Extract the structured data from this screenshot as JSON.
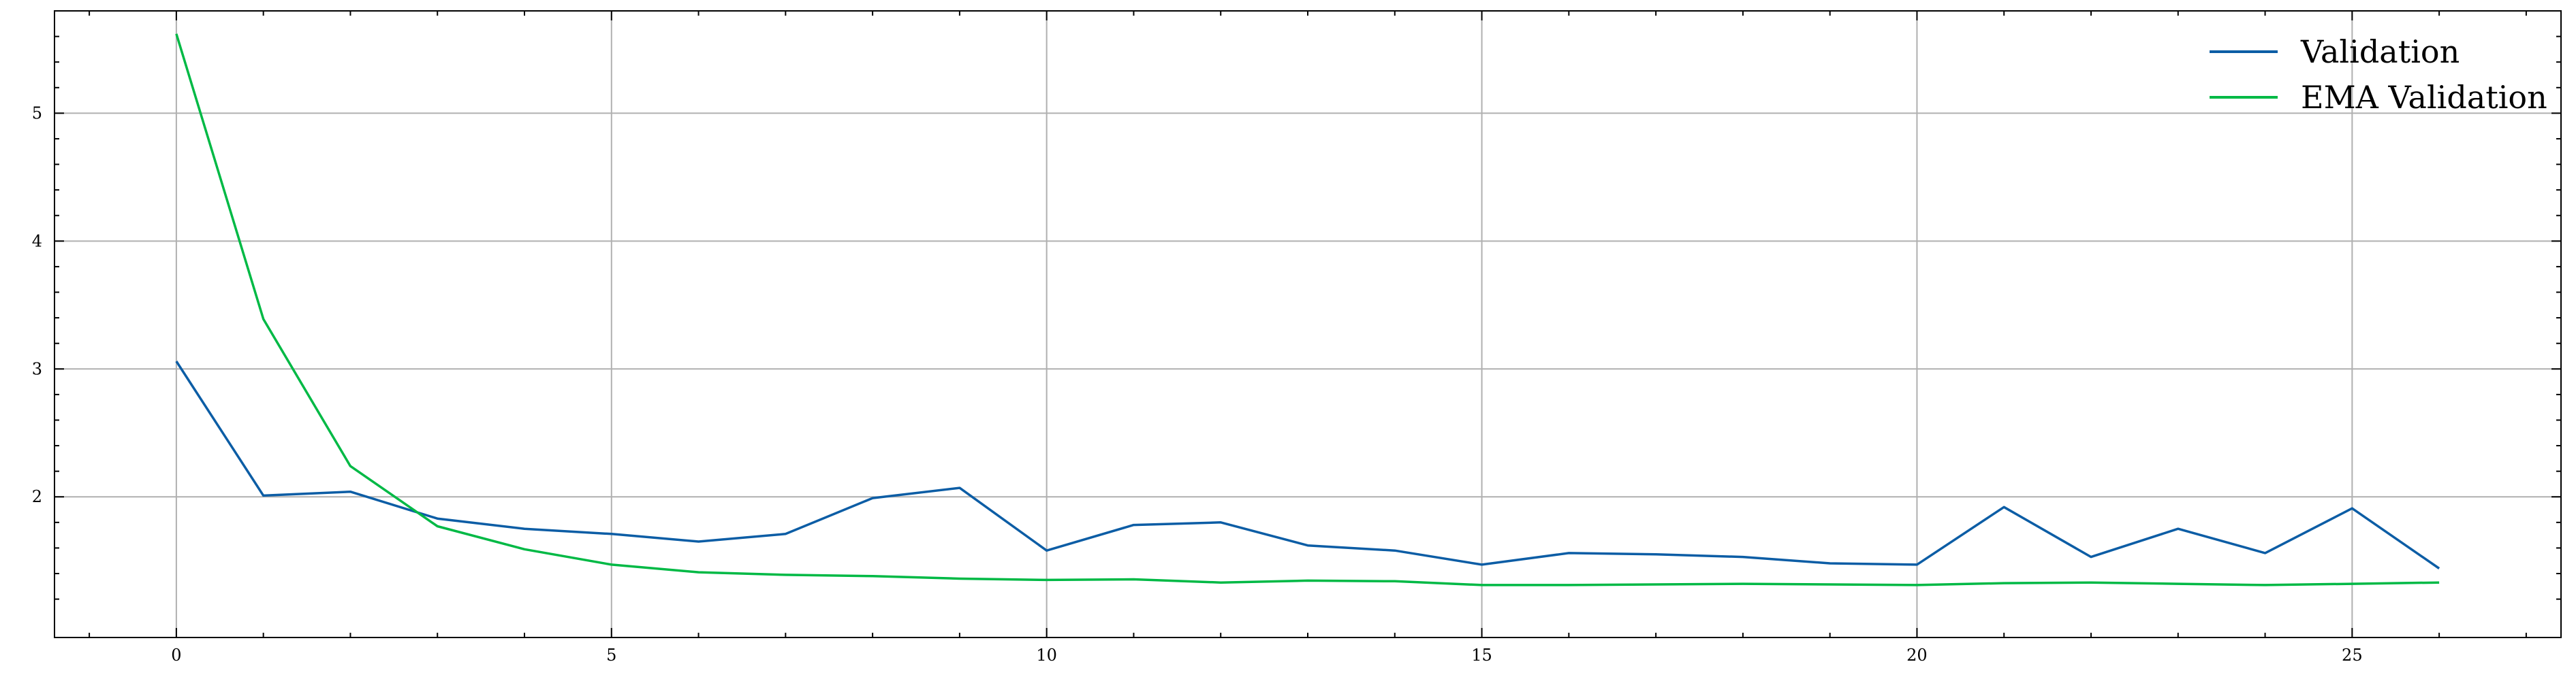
{
  "chart_data": {
    "type": "line",
    "title": "",
    "xlabel": "",
    "ylabel": "",
    "xlim": [
      -1.4,
      27.4
    ],
    "ylim": [
      0.9,
      5.8
    ],
    "grid": true,
    "legend_position": "top-right",
    "x_ticks": [
      0,
      5,
      10,
      15,
      20,
      25
    ],
    "x_tick_labels": [
      "0",
      "5",
      "10",
      "15",
      "20",
      "25"
    ],
    "y_ticks": [
      2,
      3,
      4,
      5
    ],
    "y_tick_labels": [
      "2",
      "3",
      "4",
      "5"
    ],
    "x": [
      0,
      1,
      2,
      3,
      4,
      5,
      6,
      7,
      8,
      9,
      10,
      11,
      12,
      13,
      14,
      15,
      16,
      17,
      18,
      19,
      20,
      21,
      22,
      23,
      24,
      25,
      26
    ],
    "series": [
      {
        "name": "Validation",
        "color": "#0C5DA5",
        "values": [
          3.06,
          2.01,
          2.04,
          1.83,
          1.75,
          1.71,
          1.65,
          1.71,
          1.99,
          2.07,
          1.58,
          1.78,
          1.8,
          1.62,
          1.58,
          1.47,
          1.56,
          1.55,
          1.53,
          1.48,
          1.47,
          1.92,
          1.53,
          1.75,
          1.56,
          1.91,
          1.44
        ]
      },
      {
        "name": "EMA Validation",
        "color": "#00B945",
        "values": [
          5.62,
          3.39,
          2.24,
          1.77,
          1.59,
          1.47,
          1.41,
          1.39,
          1.38,
          1.36,
          1.35,
          1.355,
          1.33,
          1.345,
          1.34,
          1.31,
          1.31,
          1.315,
          1.32,
          1.315,
          1.31,
          1.325,
          1.33,
          1.32,
          1.31,
          1.32,
          1.33
        ]
      }
    ]
  }
}
